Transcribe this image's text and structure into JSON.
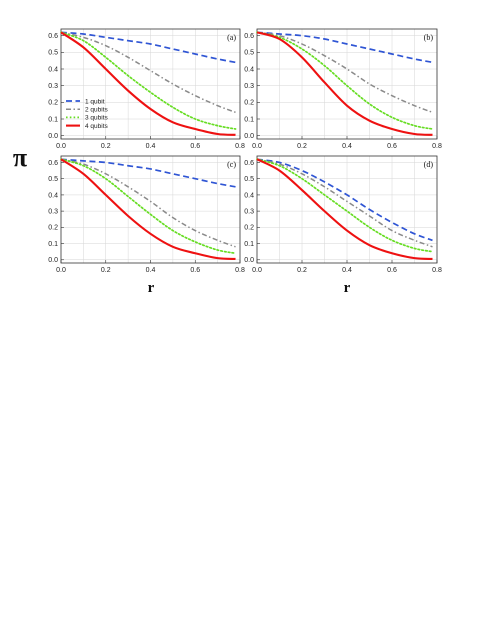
{
  "figure": {
    "ylabel": "π",
    "xlabel": "r"
  },
  "chart_data": [
    {
      "type": "line",
      "panel": "(a)",
      "xlim": [
        0,
        0.8
      ],
      "ylim": [
        -0.02,
        0.64
      ],
      "xticks": [
        "0.0",
        "0.2",
        "0.4",
        "0.6",
        "0.8"
      ],
      "yticks": [
        "0.0",
        "0.1",
        "0.2",
        "0.3",
        "0.4",
        "0.5",
        "0.6"
      ],
      "legend": [
        "1 qubit",
        "2 qubits",
        "3 qubits",
        "4 qubits"
      ],
      "x": [
        0,
        0.1,
        0.2,
        0.3,
        0.4,
        0.5,
        0.6,
        0.7,
        0.78
      ],
      "series": [
        {
          "name": "1 qubit",
          "color": "#2f55d4",
          "dash": "dashed",
          "values": [
            0.62,
            0.61,
            0.59,
            0.57,
            0.55,
            0.52,
            0.49,
            0.46,
            0.44
          ]
        },
        {
          "name": "2 qubits",
          "color": "#8a8a8a",
          "dash": "dashdot",
          "values": [
            0.62,
            0.59,
            0.54,
            0.47,
            0.39,
            0.31,
            0.24,
            0.18,
            0.14
          ]
        },
        {
          "name": "3 qubits",
          "color": "#66dd22",
          "dash": "dotted",
          "values": [
            0.62,
            0.57,
            0.47,
            0.36,
            0.26,
            0.17,
            0.1,
            0.06,
            0.04
          ]
        },
        {
          "name": "4 qubits",
          "color": "#ee1111",
          "dash": "solid",
          "values": [
            0.62,
            0.53,
            0.4,
            0.27,
            0.16,
            0.08,
            0.04,
            0.01,
            0.005
          ]
        }
      ]
    },
    {
      "type": "line",
      "panel": "(b)",
      "xlim": [
        0,
        0.8
      ],
      "ylim": [
        -0.02,
        0.64
      ],
      "xticks": [
        "0.0",
        "0.2",
        "0.4",
        "0.6",
        "0.8"
      ],
      "yticks": [
        "0.0",
        "0.1",
        "0.2",
        "0.3",
        "0.4",
        "0.5",
        "0.6"
      ],
      "x": [
        0,
        0.1,
        0.2,
        0.3,
        0.4,
        0.5,
        0.6,
        0.7,
        0.78
      ],
      "series": [
        {
          "name": "1 qubit",
          "color": "#2f55d4",
          "dash": "dashed",
          "values": [
            0.62,
            0.61,
            0.6,
            0.58,
            0.55,
            0.52,
            0.49,
            0.46,
            0.44
          ]
        },
        {
          "name": "2 qubits",
          "color": "#8a8a8a",
          "dash": "dashdot",
          "values": [
            0.62,
            0.6,
            0.55,
            0.48,
            0.4,
            0.31,
            0.24,
            0.18,
            0.14
          ]
        },
        {
          "name": "3 qubits",
          "color": "#66dd22",
          "dash": "dotted",
          "values": [
            0.62,
            0.59,
            0.52,
            0.42,
            0.3,
            0.19,
            0.11,
            0.06,
            0.04
          ]
        },
        {
          "name": "4 qubits",
          "color": "#ee1111",
          "dash": "solid",
          "values": [
            0.62,
            0.58,
            0.47,
            0.32,
            0.18,
            0.09,
            0.04,
            0.01,
            0.005
          ]
        }
      ]
    },
    {
      "type": "line",
      "panel": "(c)",
      "xlim": [
        0,
        0.8
      ],
      "ylim": [
        -0.02,
        0.64
      ],
      "xticks": [
        "0.0",
        "0.2",
        "0.4",
        "0.6",
        "0.8"
      ],
      "yticks": [
        "0.0",
        "0.1",
        "0.2",
        "0.3",
        "0.4",
        "0.5",
        "0.6"
      ],
      "x": [
        0,
        0.1,
        0.2,
        0.3,
        0.4,
        0.5,
        0.6,
        0.7,
        0.78
      ],
      "series": [
        {
          "name": "1 qubit",
          "color": "#2f55d4",
          "dash": "dashed",
          "values": [
            0.62,
            0.61,
            0.6,
            0.58,
            0.56,
            0.53,
            0.5,
            0.47,
            0.45
          ]
        },
        {
          "name": "2 qubits",
          "color": "#8a8a8a",
          "dash": "dashdot",
          "values": [
            0.62,
            0.59,
            0.53,
            0.45,
            0.36,
            0.26,
            0.18,
            0.12,
            0.08
          ]
        },
        {
          "name": "3 qubits",
          "color": "#66dd22",
          "dash": "dotted",
          "values": [
            0.62,
            0.58,
            0.5,
            0.39,
            0.28,
            0.18,
            0.11,
            0.06,
            0.04
          ]
        },
        {
          "name": "4 qubits",
          "color": "#ee1111",
          "dash": "solid",
          "values": [
            0.62,
            0.53,
            0.4,
            0.27,
            0.16,
            0.08,
            0.04,
            0.01,
            0.005
          ]
        }
      ]
    },
    {
      "type": "line",
      "panel": "(d)",
      "xlim": [
        0,
        0.8
      ],
      "ylim": [
        -0.02,
        0.64
      ],
      "xticks": [
        "0.0",
        "0.2",
        "0.4",
        "0.6",
        "0.8"
      ],
      "yticks": [
        "0.0",
        "0.1",
        "0.2",
        "0.3",
        "0.4",
        "0.5",
        "0.6"
      ],
      "x": [
        0,
        0.1,
        0.2,
        0.3,
        0.4,
        0.5,
        0.6,
        0.7,
        0.78
      ],
      "series": [
        {
          "name": "1 qubit",
          "color": "#2f55d4",
          "dash": "dashed",
          "values": [
            0.62,
            0.6,
            0.55,
            0.48,
            0.4,
            0.31,
            0.23,
            0.16,
            0.12
          ]
        },
        {
          "name": "2 qubits",
          "color": "#8a8a8a",
          "dash": "dashdot",
          "values": [
            0.62,
            0.59,
            0.53,
            0.45,
            0.36,
            0.27,
            0.18,
            0.12,
            0.08
          ]
        },
        {
          "name": "3 qubits",
          "color": "#66dd22",
          "dash": "dotted",
          "values": [
            0.62,
            0.58,
            0.5,
            0.4,
            0.3,
            0.2,
            0.12,
            0.07,
            0.05
          ]
        },
        {
          "name": "4 qubits",
          "color": "#ee1111",
          "dash": "solid",
          "values": [
            0.62,
            0.55,
            0.43,
            0.3,
            0.18,
            0.09,
            0.04,
            0.01,
            0.005
          ]
        }
      ]
    }
  ]
}
